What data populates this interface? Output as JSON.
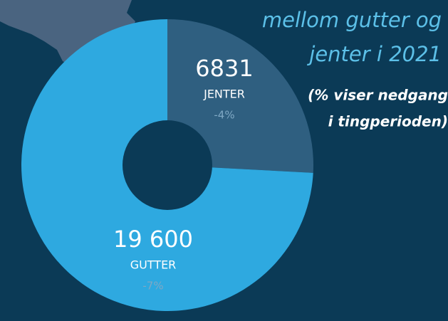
{
  "chart_data": {
    "type": "pie",
    "title_lines": [
      "mellom gutter og",
      "jenter i 2021"
    ],
    "subtitle_lines": [
      "(% viser nedgang",
      "i tingperioden)"
    ],
    "categories": [
      "JENTER",
      "GUTTER"
    ],
    "values": [
      6831,
      19600
    ],
    "value_labels": [
      "6831",
      "19 600"
    ],
    "change_labels": [
      "-4%",
      "-7%"
    ],
    "colors": [
      "#2f5f80",
      "#2ea9e0"
    ]
  }
}
